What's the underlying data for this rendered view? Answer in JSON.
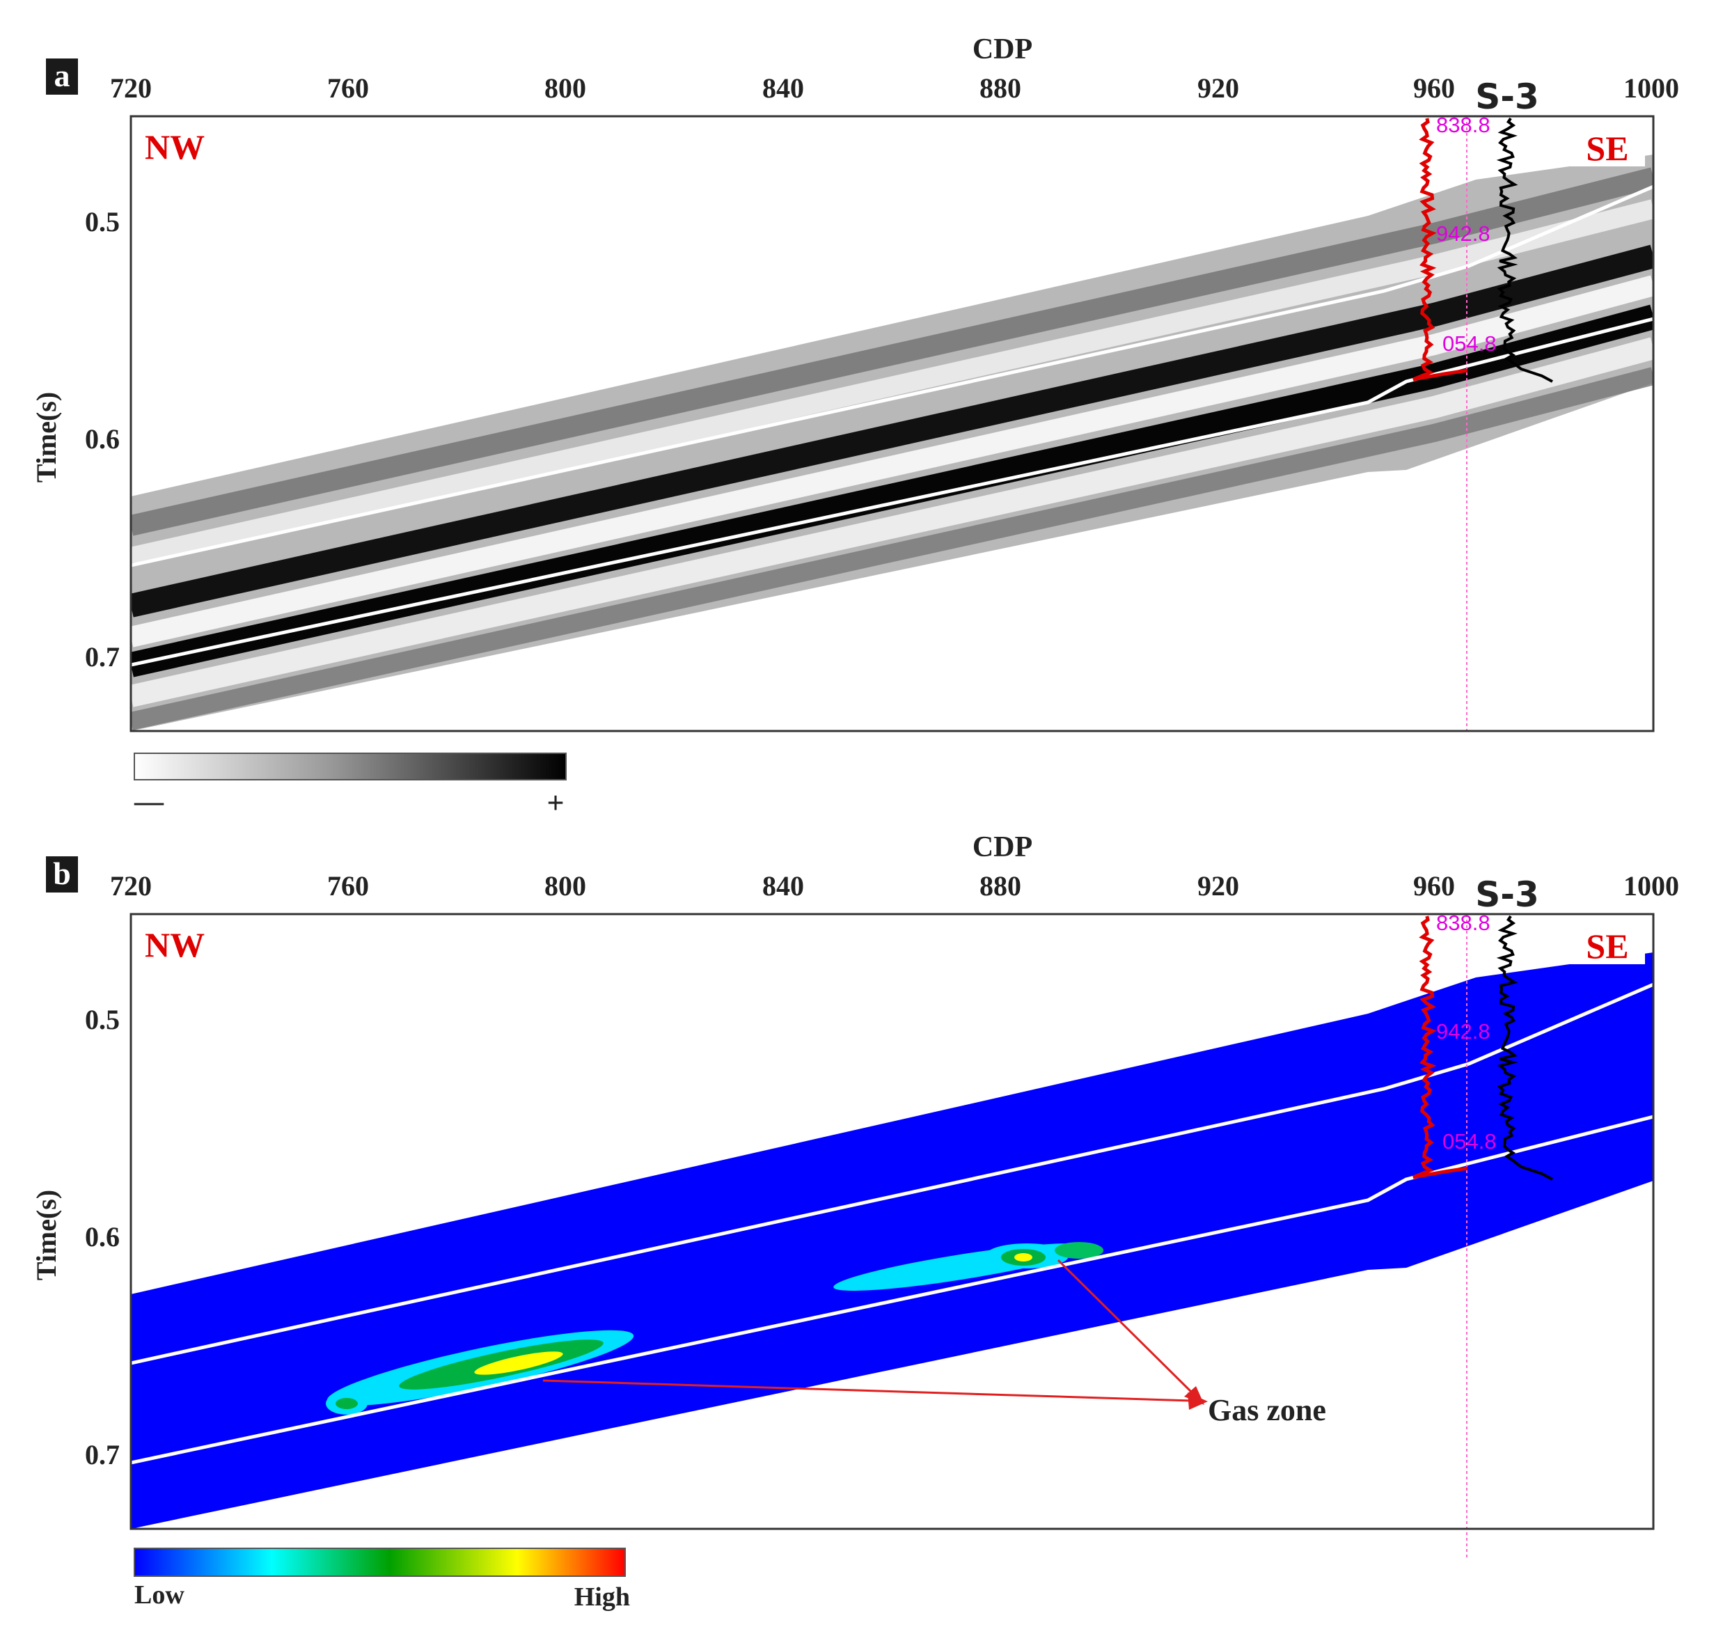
{
  "panels": [
    {
      "id": "a",
      "letter": "a",
      "x_axis_label": "CDP",
      "x_ticks": [
        "720",
        "760",
        "800",
        "840",
        "880",
        "920",
        "960",
        "1000"
      ],
      "y_axis_label": "Time(s)",
      "y_ticks": [
        "0.5",
        "0.6",
        "0.7"
      ],
      "well_name": "S-3",
      "left_direction": "NW",
      "right_direction": "SE",
      "depth_labels": [
        "838.8",
        "942.8",
        "054.8"
      ],
      "colorbar": {
        "min_label": "—",
        "max_label": "+",
        "colors": [
          "#ffffff",
          "#000000"
        ]
      }
    },
    {
      "id": "b",
      "letter": "b",
      "x_axis_label": "CDP",
      "x_ticks": [
        "720",
        "760",
        "800",
        "840",
        "880",
        "920",
        "960",
        "1000"
      ],
      "y_axis_label": "Time(s)",
      "y_ticks": [
        "0.5",
        "0.6",
        "0.7"
      ],
      "well_name": "S-3",
      "left_direction": "NW",
      "right_direction": "SE",
      "depth_labels": [
        "838.8",
        "942.8",
        "054.8"
      ],
      "colorbar": {
        "min_label": "Low",
        "max_label": "High",
        "colors": [
          "#0000ff",
          "#00ffff",
          "#00a000",
          "#ffff00",
          "#ff0000"
        ]
      },
      "annotation": "Gas zone"
    }
  ],
  "colors": {
    "direction": "#e00000",
    "depth": "#e000e0",
    "gamma_log": "#e00000",
    "resistivity_log": "#000000",
    "section_blue": "#0000ff",
    "horizon": "#ffffff"
  }
}
